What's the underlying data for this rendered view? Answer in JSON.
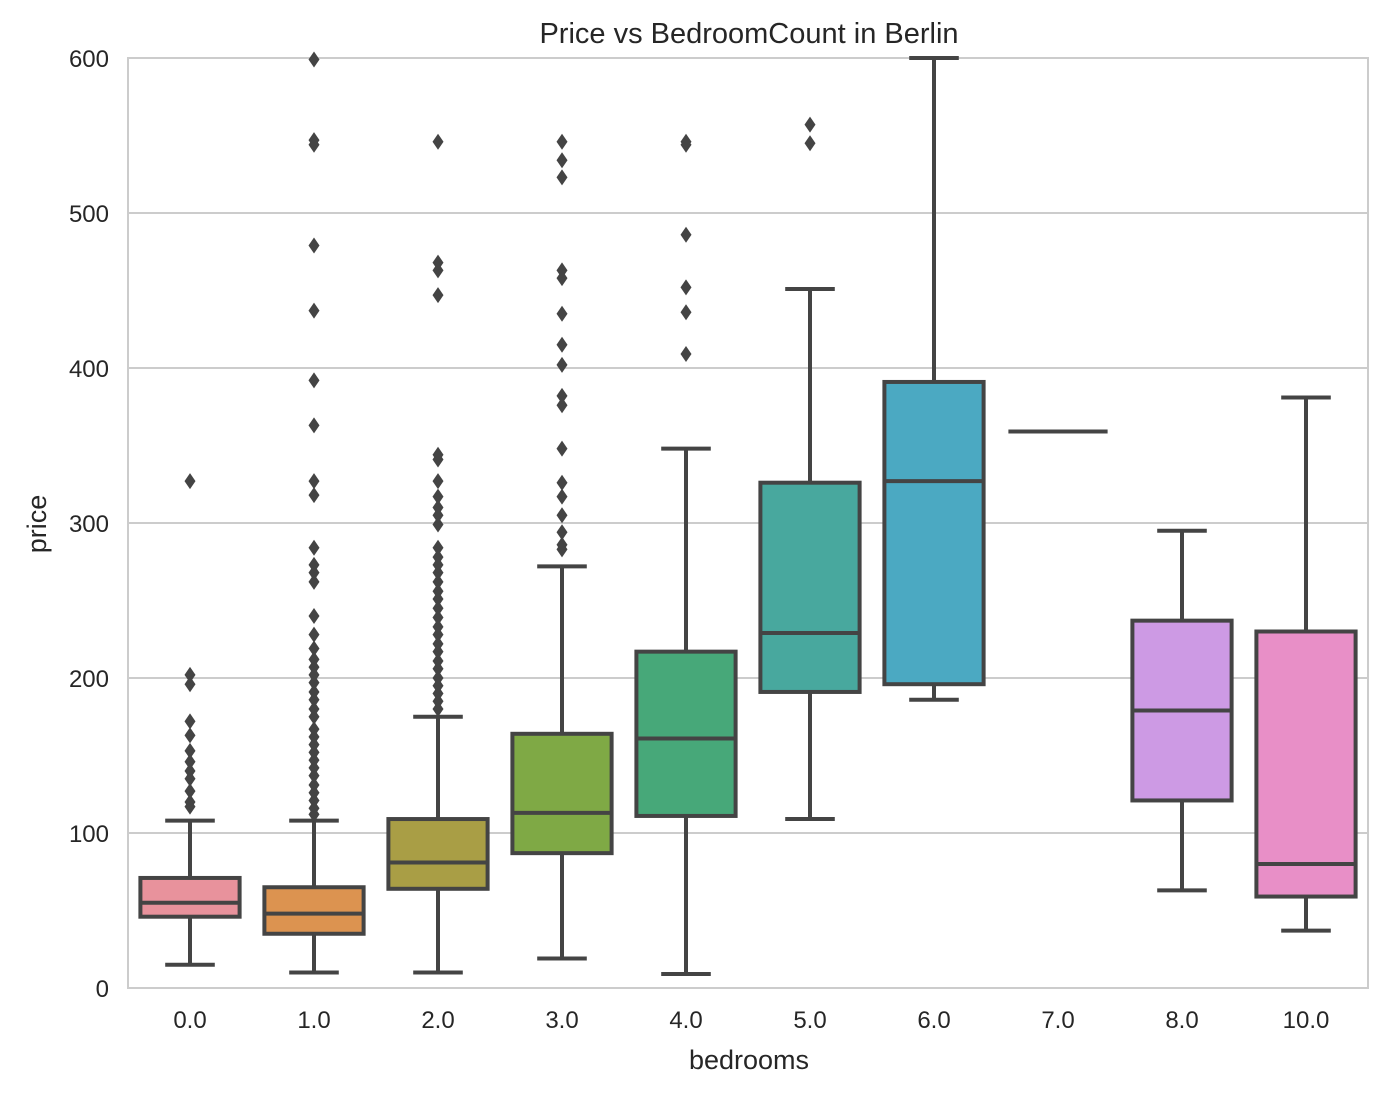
{
  "chart_data": {
    "type": "box",
    "title": "Price vs BedroomCount in Berlin",
    "xlabel": "bedrooms",
    "ylabel": "price",
    "ylim": [
      0,
      600
    ],
    "yticks": [
      0,
      100,
      200,
      300,
      400,
      500,
      600
    ],
    "grid": "horizontal",
    "categories": [
      "0.0",
      "1.0",
      "2.0",
      "3.0",
      "4.0",
      "5.0",
      "6.0",
      "7.0",
      "8.0",
      "10.0"
    ],
    "colors": [
      "#e8929c",
      "#dc9350",
      "#a99e45",
      "#7fa945",
      "#47a879",
      "#48a89e",
      "#4ba9c2",
      "#8fa8de",
      "#cd9ae4",
      "#e88fc7"
    ],
    "boxes": [
      {
        "whisker_low": 15,
        "q1": 46,
        "median": 55,
        "q3": 71,
        "whisker_high": 108,
        "outliers": [
          117,
          120,
          127,
          135,
          140,
          146,
          153,
          163,
          172,
          196,
          202,
          327
        ]
      },
      {
        "whisker_low": 10,
        "q1": 35,
        "median": 48,
        "q3": 65,
        "whisker_high": 108,
        "outliers": [
          112,
          116,
          121,
          126,
          131,
          137,
          142,
          147,
          152,
          157,
          162,
          167,
          175,
          180,
          186,
          191,
          197,
          202,
          207,
          212,
          219,
          228,
          240,
          262,
          268,
          273,
          284,
          318,
          327,
          363,
          392,
          437,
          479,
          544,
          547,
          599
        ]
      },
      {
        "whisker_low": 10,
        "q1": 64,
        "median": 81,
        "q3": 109,
        "whisker_high": 175,
        "outliers": [
          180,
          185,
          190,
          195,
          200,
          206,
          211,
          217,
          222,
          228,
          233,
          239,
          245,
          251,
          256,
          262,
          268,
          273,
          278,
          284,
          299,
          305,
          310,
          317,
          327,
          341,
          344,
          447,
          463,
          468,
          546
        ]
      },
      {
        "whisker_low": 19,
        "q1": 87,
        "median": 113,
        "q3": 164,
        "whisker_high": 272,
        "outliers": [
          283,
          286,
          294,
          305,
          317,
          326,
          348,
          376,
          382,
          402,
          415,
          435,
          458,
          463,
          523,
          534,
          546
        ]
      },
      {
        "whisker_low": 9,
        "q1": 111,
        "median": 161,
        "q3": 217,
        "whisker_high": 348,
        "outliers": [
          409,
          436,
          452,
          486,
          544,
          546
        ]
      },
      {
        "whisker_low": 109,
        "q1": 191,
        "median": 229,
        "q3": 326,
        "whisker_high": 451,
        "outliers": [
          545,
          557
        ]
      },
      {
        "whisker_low": 186,
        "q1": 196,
        "median": 327,
        "q3": 391,
        "whisker_high": 600,
        "outliers": []
      },
      {
        "whisker_low": 359,
        "q1": 359,
        "median": 359,
        "q3": 359,
        "whisker_high": 359,
        "outliers": []
      },
      {
        "whisker_low": 63,
        "q1": 121,
        "median": 179,
        "q3": 237,
        "whisker_high": 295,
        "outliers": []
      },
      {
        "whisker_low": 37,
        "q1": 59,
        "median": 80,
        "q3": 230,
        "whisker_high": 381,
        "outliers": []
      }
    ]
  }
}
